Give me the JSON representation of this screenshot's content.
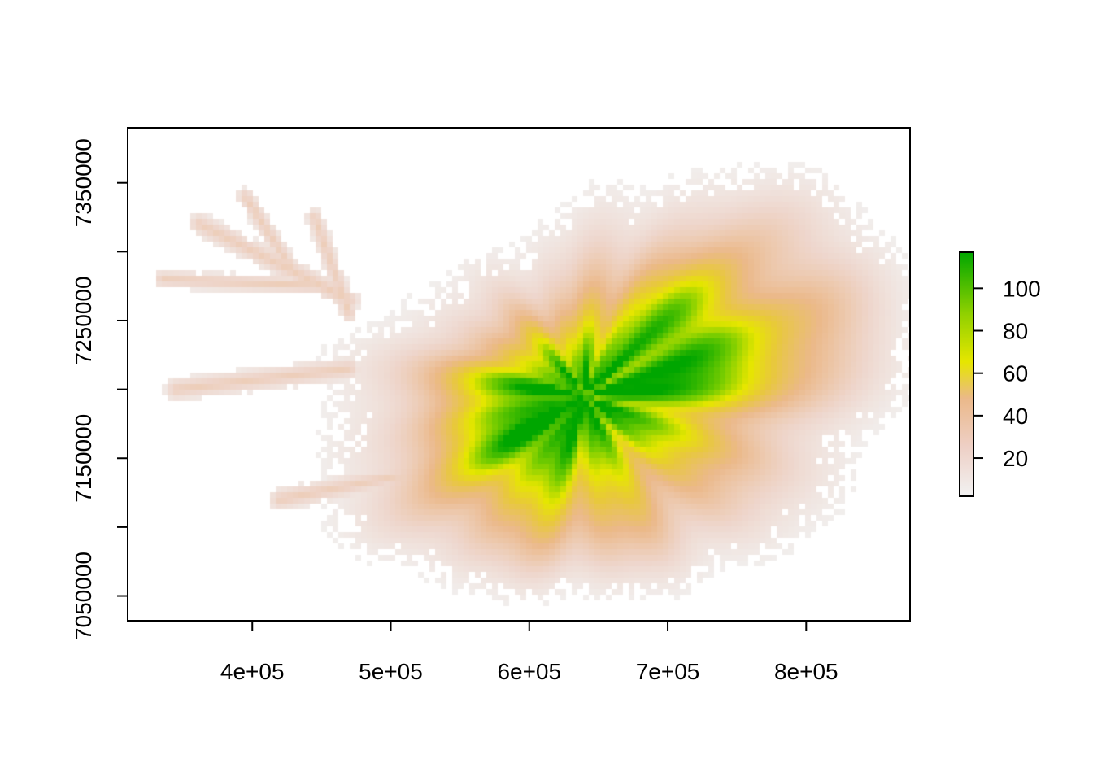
{
  "chart_data": {
    "type": "heatmap",
    "title": "",
    "xlabel": "",
    "ylabel": "",
    "xlim": [
      310000,
      875000
    ],
    "ylim": [
      7032000,
      7390000
    ],
    "x_ticks": [
      400000,
      500000,
      600000,
      700000,
      800000
    ],
    "x_tick_labels": [
      "4e+05",
      "5e+05",
      "6e+05",
      "7e+05",
      "8e+05"
    ],
    "y_ticks": [
      7050000,
      7100000,
      7150000,
      7200000,
      7250000,
      7300000,
      7350000
    ],
    "y_tick_labels": [
      "7050000",
      "",
      "7150000",
      "",
      "7250000",
      "",
      "7350000"
    ],
    "grid": false,
    "legend": {
      "type": "colorbar",
      "placement": "right",
      "range": [
        2,
        117
      ],
      "ticks": [
        20,
        40,
        60,
        80,
        100
      ],
      "tick_labels": [
        "20",
        "40",
        "60",
        "80",
        "100"
      ]
    },
    "colors": {
      "low": "#f2f2f2",
      "mid_low": "#ebb98a",
      "mid": "#e6e600",
      "high": "#00a600"
    },
    "value_range": [
      2,
      117
    ],
    "peak_regions": [
      {
        "x": 597000,
        "y": 7172000,
        "value": 115
      },
      {
        "x": 715000,
        "y": 7238000,
        "value": 105
      }
    ]
  }
}
